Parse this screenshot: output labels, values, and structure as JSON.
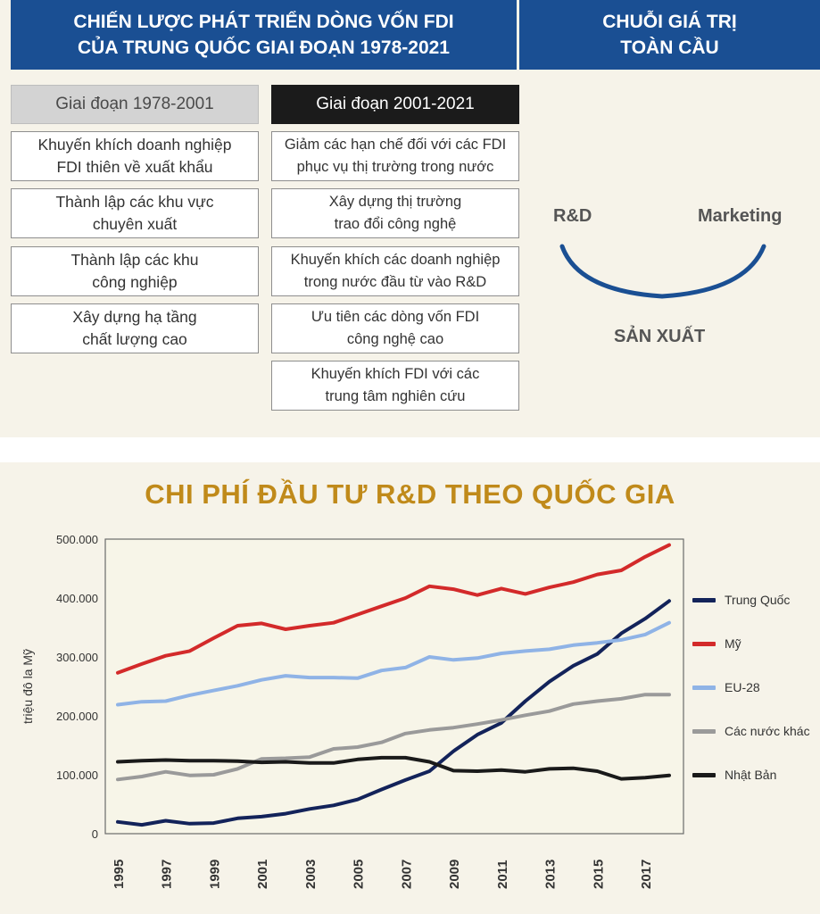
{
  "header": {
    "left_title": "CHIẾN LƯỢC PHÁT TRIỂN DÒNG VỐN FDI\nCỦA TRUNG QUỐC GIAI ĐOẠN 1978-2021",
    "right_title": "CHUỖI GIÁ TRỊ\nTOÀN CẦU"
  },
  "phases": [
    {
      "label": "Giai đoạn 1978-2001",
      "items": [
        "Khuyến khích doanh nghiệp\nFDI thiên về xuất khẩu",
        "Thành lập các khu vực\nchuyên xuất",
        "Thành lập các khu\ncông nghiệp",
        "Xây dựng hạ tầng\nchất lượng cao"
      ]
    },
    {
      "label": "Giai đoạn 2001-2021",
      "items": [
        "Giảm các hạn chế đối với các FDI\nphục vụ thị trường trong nước",
        "Xây dựng thị trường\ntrao đổi công nghệ",
        "Khuyến khích các doanh nghiệp\ntrong nước đầu từ vào R&D",
        "Ưu tiên các dòng vốn FDI\ncông nghệ cao",
        "Khuyến khích FDI với các\ntrung tâm nghiên cứu"
      ]
    }
  ],
  "value_chain": {
    "left": "R&D",
    "right": "Marketing",
    "bottom": "SẢN XUẤT",
    "arc_color": "#1a4f93"
  },
  "chart_data": {
    "type": "line",
    "title": "CHI PHÍ ĐẦU TƯ R&D THEO QUỐC GIA",
    "ylabel": "triệu đô la Mỹ",
    "xlabel": "",
    "ylim": [
      0,
      500000
    ],
    "yticks": [
      "0",
      "100.000",
      "200.000",
      "300.000",
      "400.000",
      "500.000"
    ],
    "xticks": [
      "1995",
      "1997",
      "1999",
      "2001",
      "2003",
      "2005",
      "2007",
      "2009",
      "2011",
      "2013",
      "2015",
      "2017"
    ],
    "grid": false,
    "plot_bg": "#f7f5e8",
    "legend_position": "right",
    "x": [
      1995,
      1996,
      1997,
      1998,
      1999,
      2000,
      2001,
      2002,
      2003,
      2004,
      2005,
      2006,
      2007,
      2008,
      2009,
      2010,
      2011,
      2012,
      2013,
      2014,
      2015,
      2016,
      2017,
      2018
    ],
    "series": [
      {
        "name": "Trung Quốc",
        "color": "#13235a",
        "values": [
          20000,
          15000,
          22000,
          17000,
          18000,
          26000,
          29000,
          34000,
          42000,
          48000,
          58000,
          75000,
          91000,
          106000,
          140000,
          168000,
          188000,
          225000,
          258000,
          285000,
          305000,
          340000,
          365000,
          395000
        ]
      },
      {
        "name": "Mỹ",
        "color": "#d32a2a",
        "values": [
          273000,
          288000,
          302000,
          310000,
          332000,
          353000,
          357000,
          347000,
          353000,
          358000,
          372000,
          386000,
          400000,
          420000,
          415000,
          405000,
          416000,
          407000,
          418000,
          427000,
          440000,
          447000,
          470000,
          490000
        ]
      },
      {
        "name": "EU-28",
        "color": "#8fb3e6",
        "values": [
          219000,
          224000,
          225000,
          235000,
          243000,
          251000,
          261000,
          268000,
          265000,
          265000,
          264000,
          277000,
          282000,
          300000,
          295000,
          298000,
          306000,
          310000,
          313000,
          320000,
          324000,
          329000,
          338000,
          358000
        ]
      },
      {
        "name": "Các nước khác",
        "color": "#9a9a9a",
        "values": [
          92000,
          97000,
          105000,
          99000,
          100000,
          110000,
          127000,
          128000,
          130000,
          144000,
          147000,
          155000,
          170000,
          176000,
          180000,
          186000,
          193000,
          201000,
          208000,
          220000,
          225000,
          229000,
          236000,
          236000
        ]
      },
      {
        "name": "Nhật Bản",
        "color": "#1a1a1a",
        "values": [
          122000,
          124000,
          125000,
          124000,
          124000,
          123000,
          121000,
          122000,
          120000,
          120000,
          126000,
          129000,
          129000,
          122000,
          107000,
          106000,
          108000,
          105000,
          110000,
          111000,
          106000,
          93000,
          95000,
          99000
        ]
      }
    ]
  }
}
